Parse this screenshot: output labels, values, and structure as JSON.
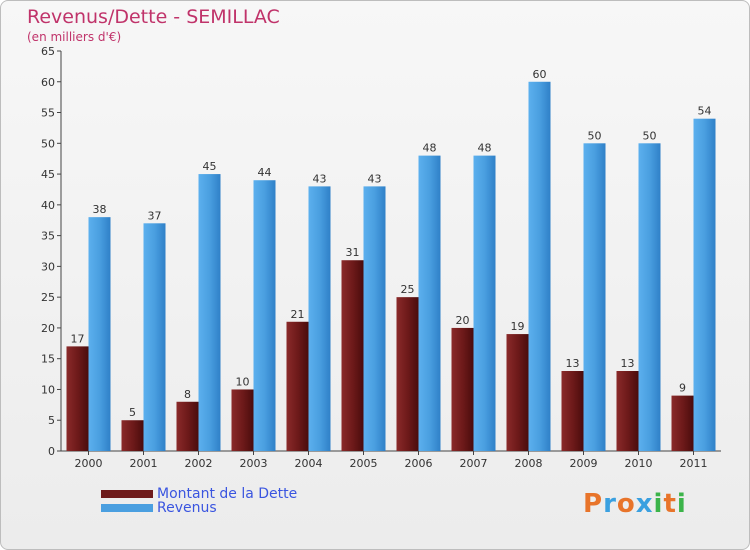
{
  "header": {
    "title": "Revenus/Dette - SEMILLAC",
    "subtitle": "(en milliers d'€)"
  },
  "logo": {
    "text": "Proxiti",
    "colors": [
      "#e8742a",
      "#3aa0e0",
      "#e8742a",
      "#3aa0e0",
      "#3cb44a",
      "#e8742a",
      "#3cb44a"
    ]
  },
  "colors": {
    "dette": "#6e1a1a",
    "revenus": "#4a9fe0",
    "axis_text": "#333333"
  },
  "chart_data": {
    "type": "bar",
    "title": "Revenus/Dette - SEMILLAC",
    "subtitle": "(en milliers d'€)",
    "categories": [
      "2000",
      "2001",
      "2002",
      "2003",
      "2004",
      "2005",
      "2006",
      "2007",
      "2008",
      "2009",
      "2010",
      "2011"
    ],
    "series": [
      {
        "name": "Montant de la Dette",
        "values": [
          17,
          5,
          8,
          10,
          21,
          31,
          25,
          20,
          19,
          13,
          13,
          9
        ]
      },
      {
        "name": "Revenus",
        "values": [
          38,
          37,
          45,
          44,
          43,
          43,
          48,
          48,
          60,
          50,
          50,
          54
        ]
      }
    ],
    "ylim": [
      0,
      65
    ],
    "yticks": [
      0,
      5,
      10,
      15,
      20,
      25,
      30,
      35,
      40,
      45,
      50,
      55,
      60,
      65
    ],
    "grid": false,
    "legend_position": "bottom-left",
    "data_labels": true
  }
}
